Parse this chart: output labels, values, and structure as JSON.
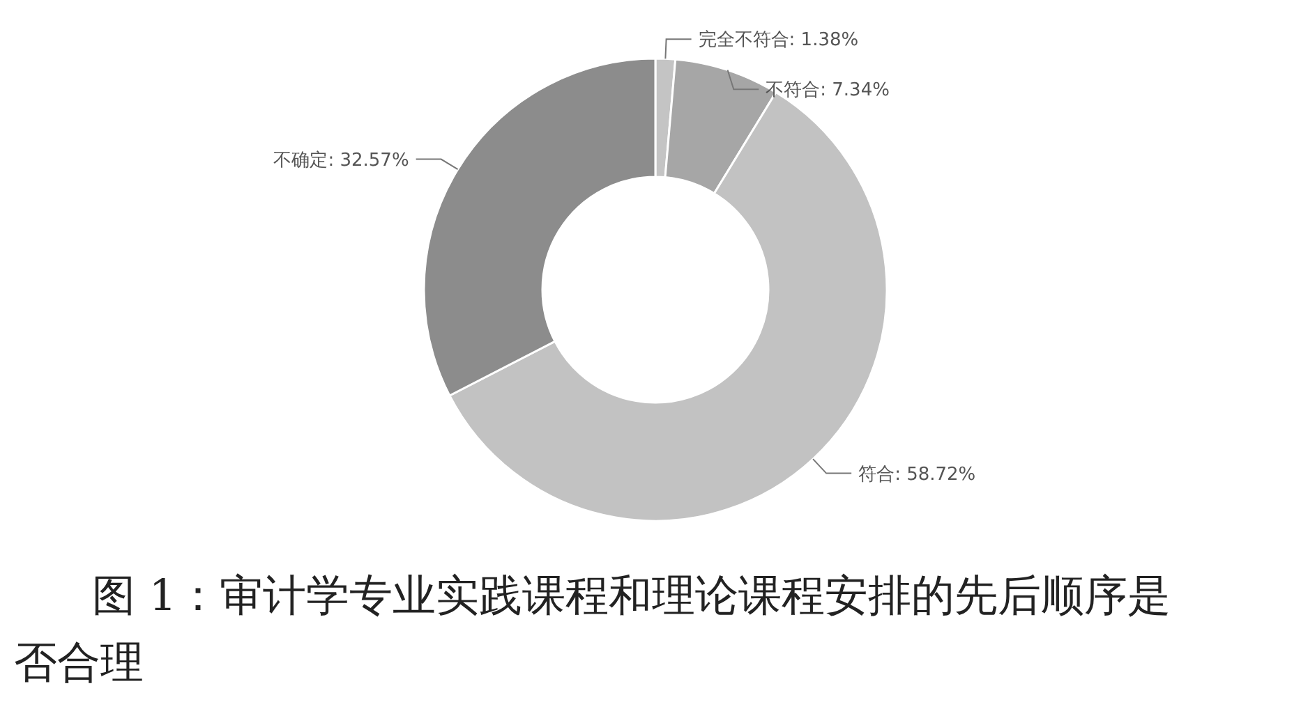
{
  "chart_data": {
    "type": "donut",
    "title": "图 1：审计学专业实践课程和理论课程安排的先后顺序是否合理",
    "categories": [
      "完全不符合",
      "不符合",
      "符合",
      "不确定"
    ],
    "values": [
      1.38,
      7.34,
      58.72,
      32.57
    ],
    "value_labels": [
      "1.38%",
      "7.34%",
      "58.72%",
      "32.57%"
    ],
    "colors": [
      "#c4c4c4",
      "#a6a6a6",
      "#c2c2c2",
      "#8c8c8c"
    ]
  }
}
